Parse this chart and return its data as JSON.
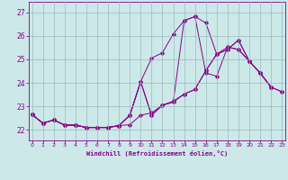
{
  "xlabel": "Windchill (Refroidissement éolien,°C)",
  "bg_color": "#cce8e8",
  "line_color": "#880088",
  "grid_color": "#99bbbb",
  "x_ticks": [
    0,
    1,
    2,
    3,
    4,
    5,
    6,
    7,
    8,
    9,
    10,
    11,
    12,
    13,
    14,
    15,
    16,
    17,
    18,
    19,
    20,
    21,
    22,
    23
  ],
  "y_ticks": [
    22,
    23,
    24,
    25,
    26,
    27
  ],
  "xlim": [
    -0.3,
    23.3
  ],
  "ylim": [
    21.55,
    27.45
  ],
  "line_peak_high": [
    22.65,
    22.28,
    22.42,
    22.2,
    22.2,
    22.1,
    22.1,
    22.1,
    22.18,
    22.62,
    24.05,
    25.05,
    25.28,
    26.08,
    26.65,
    26.82,
    26.55,
    25.22,
    25.52,
    25.42,
    24.92,
    24.42,
    23.82,
    null
  ],
  "line_peak_jagged": [
    22.65,
    22.28,
    22.42,
    22.2,
    22.2,
    22.1,
    22.1,
    22.1,
    22.18,
    22.62,
    24.05,
    22.62,
    23.05,
    23.18,
    26.65,
    26.82,
    24.42,
    24.28,
    25.52,
    25.42,
    24.92,
    24.42,
    23.82,
    null
  ],
  "line_upper_linear": [
    22.65,
    22.28,
    22.42,
    22.2,
    22.2,
    22.1,
    22.1,
    22.1,
    22.18,
    22.62,
    24.05,
    22.62,
    23.05,
    23.18,
    23.52,
    23.72,
    24.52,
    25.22,
    25.42,
    25.82,
    24.92,
    24.42,
    23.82,
    23.62
  ],
  "line_lower_linear": [
    22.65,
    22.28,
    22.42,
    22.2,
    22.2,
    22.1,
    22.1,
    22.1,
    22.18,
    22.22,
    22.62,
    22.72,
    23.05,
    23.22,
    23.52,
    23.72,
    24.52,
    25.22,
    25.42,
    25.82,
    24.92,
    24.42,
    23.82,
    23.62
  ]
}
